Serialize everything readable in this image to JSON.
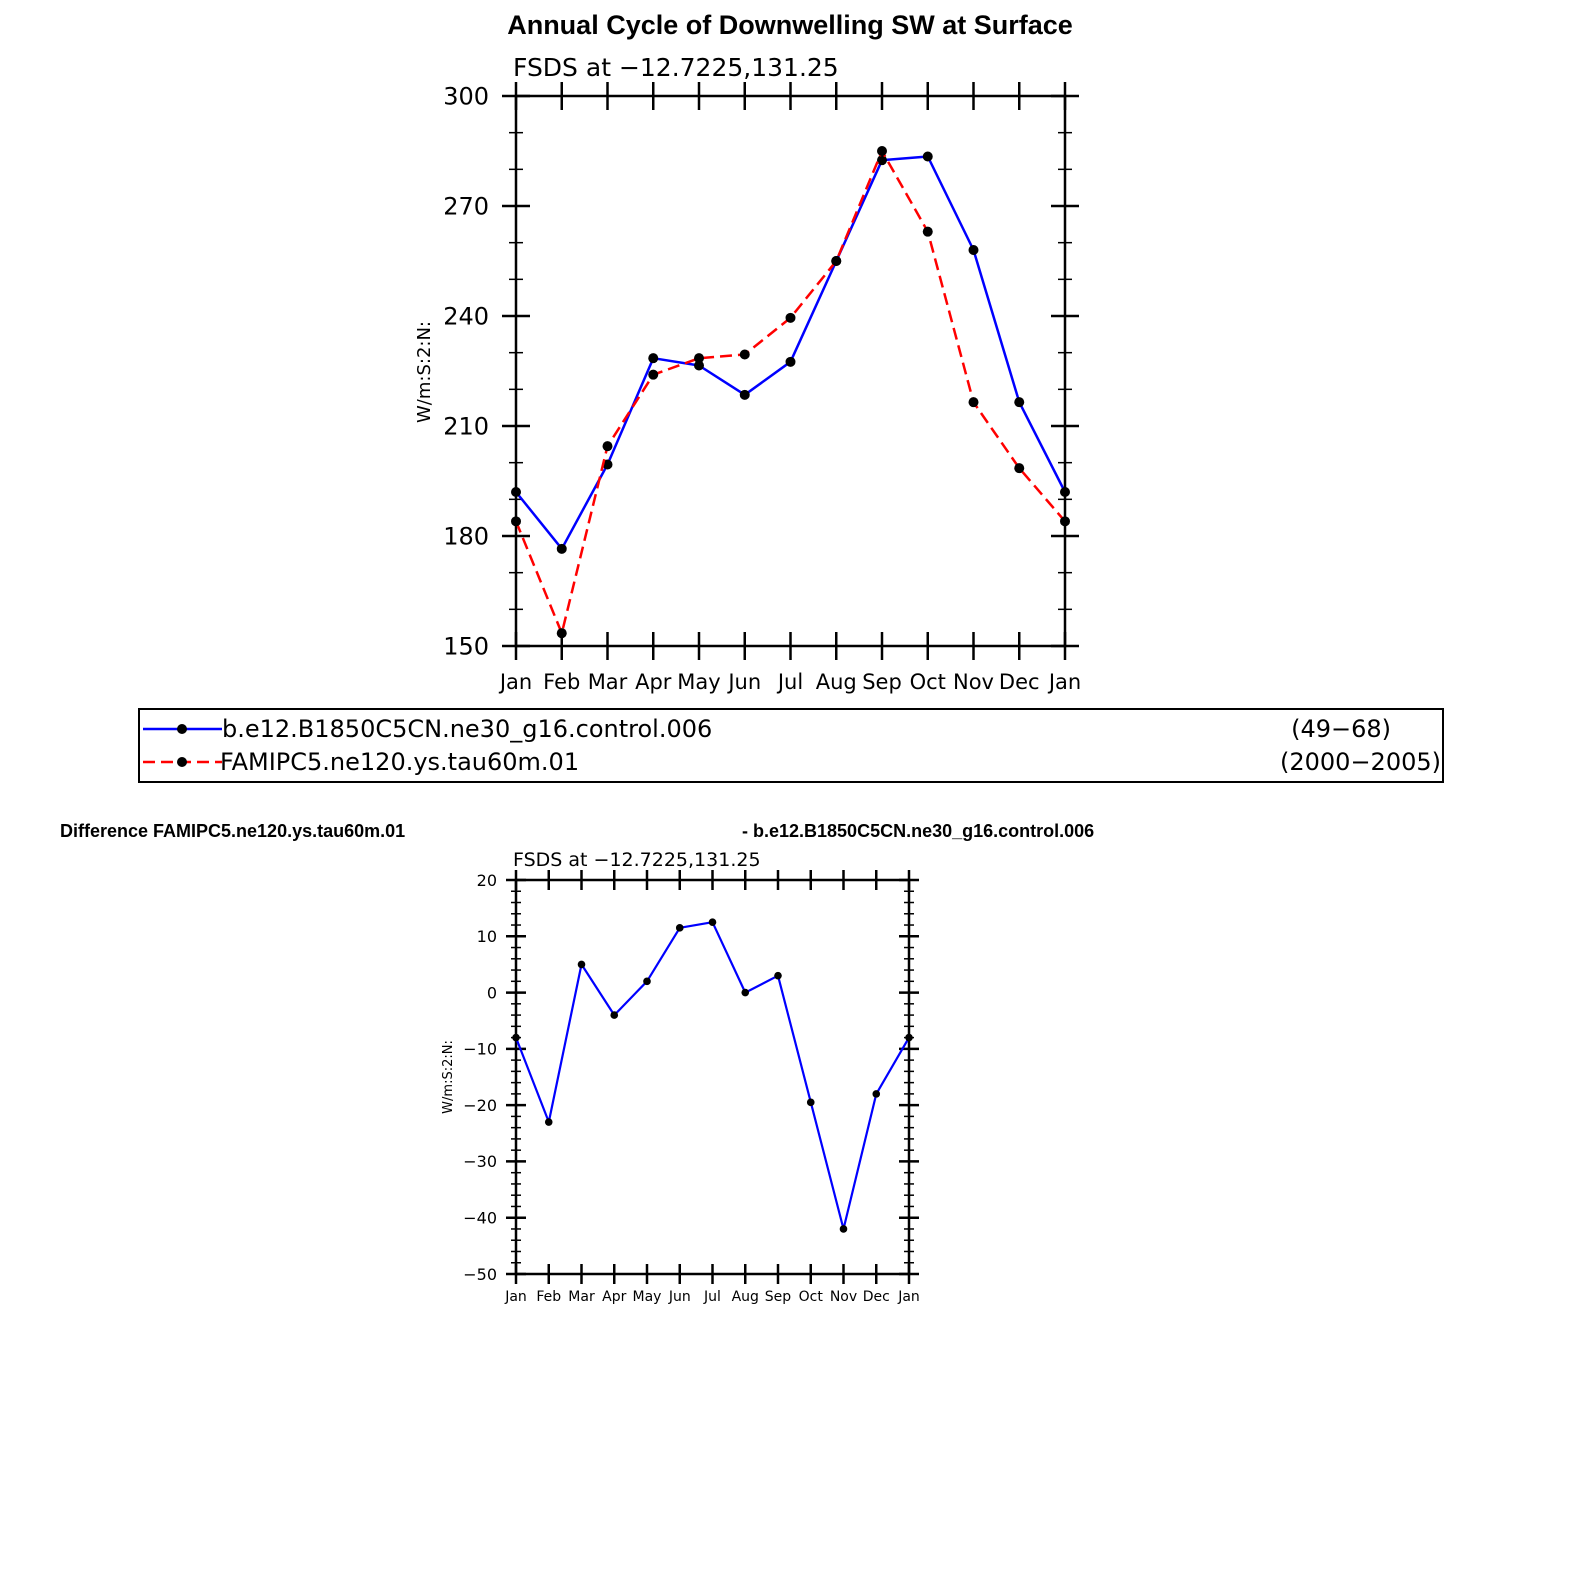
{
  "chart_data": [
    {
      "type": "line",
      "title": "Annual Cycle of Downwelling SW at Surface",
      "subtitle": "FSDS at −12.7225,131.25",
      "ylabel": "W/m:S:2:N:",
      "xlabel": "",
      "ylim": [
        150,
        300
      ],
      "yticks": [
        "150",
        "180",
        "210",
        "240",
        "270",
        "300"
      ],
      "ytick_values": [
        150,
        180,
        210,
        240,
        270,
        300
      ],
      "categories": [
        "Jan",
        "Feb",
        "Mar",
        "Apr",
        "May",
        "Jun",
        "Jul",
        "Aug",
        "Sep",
        "Oct",
        "Nov",
        "Dec",
        "Jan"
      ],
      "series": [
        {
          "name": "b.e12.B1850C5CN.ne30_g16.control.006",
          "years": "(49−68)",
          "color": "#0000ff",
          "dash": "solid",
          "values": [
            192,
            176.5,
            199.5,
            228.5,
            226.5,
            218.5,
            227.5,
            255,
            282.5,
            283.5,
            258,
            216.5,
            192
          ]
        },
        {
          "name": "FAMIPC5.ne120.ys.tau60m.01",
          "years": "(2000−2005)",
          "color": "#ff0000",
          "dash": "dashed",
          "values": [
            184,
            153.5,
            204.5,
            224,
            228.5,
            229.5,
            239.5,
            255,
            285,
            263,
            216.5,
            198.5,
            184
          ]
        }
      ]
    },
    {
      "type": "line",
      "title_left": "Difference FAMIPC5.ne120.ys.tau60m.01",
      "title_right": "- b.e12.B1850C5CN.ne30_g16.control.006",
      "subtitle": "FSDS at −12.7225,131.25",
      "ylabel": "W/m:S:2:N:",
      "xlabel": "",
      "ylim": [
        -50,
        20
      ],
      "yticks": [
        "−50",
        "−40",
        "−30",
        "−20",
        "−10",
        "0",
        "10",
        "20"
      ],
      "ytick_values": [
        -50,
        -40,
        -30,
        -20,
        -10,
        0,
        10,
        20
      ],
      "categories": [
        "Jan",
        "Feb",
        "Mar",
        "Apr",
        "May",
        "Jun",
        "Jul",
        "Aug",
        "Sep",
        "Oct",
        "Nov",
        "Dec",
        "Jan"
      ],
      "series": [
        {
          "name": "difference",
          "color": "#0000ff",
          "values": [
            -8,
            -23,
            5,
            -4,
            2,
            11.5,
            12.5,
            0,
            3,
            -19.5,
            -42,
            -18,
            -8
          ]
        }
      ]
    }
  ]
}
